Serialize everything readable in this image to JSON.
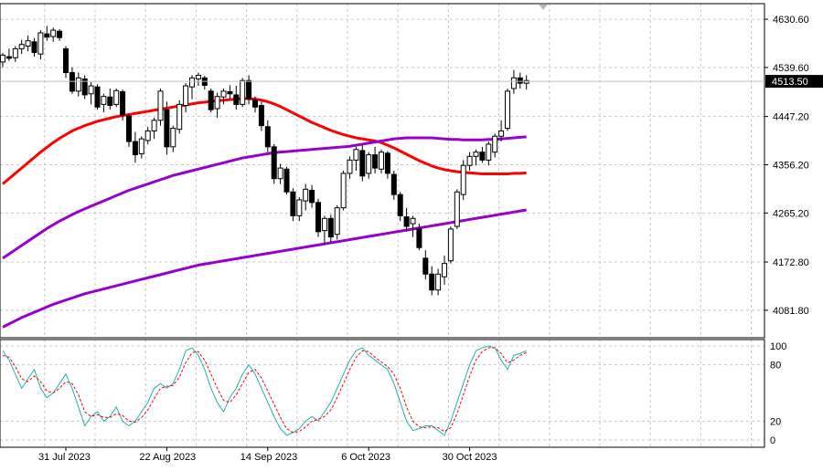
{
  "chart_data": [
    {
      "type": "candlestick",
      "pane": "price",
      "ylim": [
        4030,
        4660
      ],
      "y_ticks": [
        "4630.60",
        "4539.60",
        "4447.20",
        "4356.20",
        "4265.20",
        "4172.80",
        "4081.80"
      ],
      "current_price": "4513.50",
      "x_labels": [
        "31 Jul 2023",
        "22 Aug 2023",
        "14 Sep 2023",
        "6 Oct 2023",
        "30 Oct 2023"
      ],
      "x_label_bar_index": [
        10,
        26,
        42,
        58,
        74
      ],
      "grid": true,
      "bars": [
        [
          4550,
          4567,
          4540,
          4563
        ],
        [
          4560,
          4575,
          4552,
          4557
        ],
        [
          4558,
          4580,
          4550,
          4575
        ],
        [
          4575,
          4592,
          4565,
          4583
        ],
        [
          4580,
          4600,
          4570,
          4590
        ],
        [
          4588,
          4595,
          4560,
          4568
        ],
        [
          4565,
          4610,
          4555,
          4605
        ],
        [
          4603,
          4618,
          4590,
          4597
        ],
        [
          4598,
          4615,
          4588,
          4610
        ],
        [
          4608,
          4612,
          4590,
          4596
        ],
        [
          4575,
          4580,
          4520,
          4530
        ],
        [
          4530,
          4540,
          4490,
          4495
        ],
        [
          4495,
          4530,
          4485,
          4520
        ],
        [
          4518,
          4525,
          4480,
          4488
        ],
        [
          4490,
          4512,
          4470,
          4505
        ],
        [
          4503,
          4508,
          4460,
          4465
        ],
        [
          4470,
          4490,
          4455,
          4485
        ],
        [
          4484,
          4500,
          4460,
          4468
        ],
        [
          4470,
          4500,
          4465,
          4496
        ],
        [
          4494,
          4498,
          4440,
          4450
        ],
        [
          4448,
          4452,
          4390,
          4400
        ],
        [
          4400,
          4418,
          4360,
          4375
        ],
        [
          4377,
          4410,
          4368,
          4405
        ],
        [
          4402,
          4428,
          4395,
          4420
        ],
        [
          4420,
          4445,
          4405,
          4440
        ],
        [
          4440,
          4500,
          4430,
          4495
        ],
        [
          4460,
          4475,
          4375,
          4390
        ],
        [
          4390,
          4430,
          4380,
          4425
        ],
        [
          4423,
          4478,
          4415,
          4470
        ],
        [
          4468,
          4510,
          4455,
          4505
        ],
        [
          4503,
          4525,
          4480,
          4520
        ],
        [
          4518,
          4530,
          4505,
          4525
        ],
        [
          4520,
          4524,
          4498,
          4506
        ],
        [
          4495,
          4500,
          4455,
          4460
        ],
        [
          4462,
          4492,
          4445,
          4485
        ],
        [
          4484,
          4500,
          4470,
          4495
        ],
        [
          4494,
          4506,
          4480,
          4490
        ],
        [
          4488,
          4505,
          4460,
          4470
        ],
        [
          4470,
          4520,
          4465,
          4515
        ],
        [
          4515,
          4525,
          4470,
          4480
        ],
        [
          4478,
          4485,
          4455,
          4465
        ],
        [
          4468,
          4475,
          4420,
          4430
        ],
        [
          4428,
          4440,
          4380,
          4390
        ],
        [
          4390,
          4395,
          4320,
          4330
        ],
        [
          4330,
          4358,
          4320,
          4350
        ],
        [
          4348,
          4352,
          4300,
          4305
        ],
        [
          4305,
          4312,
          4250,
          4260
        ],
        [
          4260,
          4295,
          4250,
          4290
        ],
        [
          4288,
          4320,
          4270,
          4310
        ],
        [
          4308,
          4318,
          4275,
          4285
        ],
        [
          4285,
          4292,
          4220,
          4230
        ],
        [
          4232,
          4260,
          4205,
          4255
        ],
        [
          4255,
          4262,
          4210,
          4220
        ],
        [
          4225,
          4280,
          4215,
          4275
        ],
        [
          4275,
          4345,
          4270,
          4340
        ],
        [
          4340,
          4372,
          4330,
          4365
        ],
        [
          4365,
          4390,
          4345,
          4385
        ],
        [
          4383,
          4395,
          4325,
          4335
        ],
        [
          4340,
          4380,
          4330,
          4375
        ],
        [
          4375,
          4390,
          4340,
          4350
        ],
        [
          4348,
          4385,
          4340,
          4380
        ],
        [
          4378,
          4382,
          4330,
          4340
        ],
        [
          4338,
          4345,
          4290,
          4300
        ],
        [
          4300,
          4305,
          4250,
          4260
        ],
        [
          4258,
          4275,
          4230,
          4240
        ],
        [
          4245,
          4260,
          4220,
          4255
        ],
        [
          4235,
          4245,
          4195,
          4200
        ],
        [
          4180,
          4195,
          4140,
          4150
        ],
        [
          4150,
          4165,
          4110,
          4120
        ],
        [
          4120,
          4160,
          4110,
          4150
        ],
        [
          4145,
          4185,
          4130,
          4170
        ],
        [
          4175,
          4240,
          4170,
          4235
        ],
        [
          4240,
          4310,
          4235,
          4305
        ],
        [
          4300,
          4365,
          4290,
          4355
        ],
        [
          4355,
          4380,
          4345,
          4372
        ],
        [
          4372,
          4385,
          4355,
          4380
        ],
        [
          4380,
          4390,
          4360,
          4365
        ],
        [
          4365,
          4400,
          4355,
          4395
        ],
        [
          4380,
          4415,
          4370,
          4410
        ],
        [
          4410,
          4440,
          4400,
          4420
        ],
        [
          4425,
          4500,
          4420,
          4495
        ],
        [
          4500,
          4535,
          4490,
          4520
        ],
        [
          4520,
          4530,
          4500,
          4510
        ],
        [
          4510,
          4525,
          4498,
          4515
        ]
      ],
      "series": [
        {
          "name": "",
          "color": "#ff0000",
          "values": [
            4320,
            4330,
            4340,
            4350,
            4360,
            4370,
            4380,
            4389,
            4398,
            4406,
            4413,
            4420,
            4425,
            4430,
            4434,
            4438,
            4441,
            4444,
            4447,
            4449,
            4451,
            4453,
            4455,
            4457,
            4459,
            4461,
            4463,
            4465,
            4467,
            4469,
            4471,
            4473,
            4474,
            4476,
            4477,
            4478,
            4479,
            4480,
            4481,
            4481,
            4480,
            4478,
            4475,
            4471,
            4466,
            4460,
            4454,
            4448,
            4442,
            4436,
            4431,
            4426,
            4421,
            4417,
            4413,
            4410,
            4407,
            4405,
            4403,
            4401,
            4398,
            4393,
            4388,
            4382,
            4376,
            4370,
            4364,
            4359,
            4354,
            4350,
            4347,
            4345,
            4343,
            4342,
            4341,
            4340,
            4339,
            4339,
            4339,
            4339,
            4339,
            4340,
            4340,
            4341
          ]
        },
        {
          "name": "",
          "color": "#9900cc",
          "values": [
            4180,
            4188,
            4196,
            4204,
            4212,
            4220,
            4228,
            4236,
            4243,
            4250,
            4256,
            4262,
            4268,
            4273,
            4278,
            4283,
            4288,
            4293,
            4298,
            4303,
            4308,
            4312,
            4316,
            4320,
            4324,
            4328,
            4332,
            4336,
            4339,
            4342,
            4345,
            4348,
            4351,
            4354,
            4357,
            4360,
            4363,
            4366,
            4369,
            4371,
            4373,
            4375,
            4377,
            4379,
            4380,
            4381,
            4382,
            4383,
            4384,
            4385,
            4386,
            4387,
            4388,
            4389,
            4390,
            4391,
            4393,
            4395,
            4397,
            4399,
            4401,
            4403,
            4405,
            4406,
            4407,
            4407,
            4407,
            4407,
            4407,
            4406,
            4405,
            4404,
            4404,
            4403,
            4403,
            4403,
            4403,
            4404,
            4404,
            4405,
            4406,
            4407,
            4408,
            4409
          ]
        },
        {
          "name": "",
          "color": "#9900cc",
          "values": [
            4050,
            4056,
            4062,
            4068,
            4073,
            4078,
            4083,
            4088,
            4093,
            4097,
            4101,
            4105,
            4109,
            4113,
            4116,
            4119,
            4122,
            4125,
            4128,
            4131,
            4134,
            4137,
            4140,
            4143,
            4146,
            4149,
            4152,
            4155,
            4158,
            4161,
            4164,
            4167,
            4169,
            4171,
            4173,
            4175,
            4177,
            4179,
            4181,
            4183,
            4185,
            4187,
            4189,
            4191,
            4193,
            4195,
            4197,
            4199,
            4201,
            4203,
            4205,
            4207,
            4209,
            4211,
            4213,
            4215,
            4217,
            4219,
            4221,
            4223,
            4225,
            4227,
            4229,
            4231,
            4233,
            4235,
            4237,
            4239,
            4241,
            4243,
            4245,
            4247,
            4249,
            4251,
            4253,
            4255,
            4257,
            4259,
            4261,
            4263,
            4265,
            4267,
            4269,
            4271
          ]
        }
      ]
    },
    {
      "type": "line",
      "pane": "oscillator",
      "ylim": [
        0,
        100
      ],
      "y_ticks": [
        "100",
        "80",
        "20",
        "0"
      ],
      "series": [
        {
          "name": "",
          "color": "#20b2aa",
          "values": [
            95,
            85,
            70,
            55,
            65,
            75,
            55,
            45,
            50,
            60,
            70,
            55,
            35,
            15,
            25,
            30,
            20,
            25,
            35,
            20,
            15,
            20,
            30,
            40,
            55,
            60,
            55,
            60,
            75,
            95,
            98,
            90,
            75,
            55,
            40,
            30,
            45,
            55,
            70,
            80,
            70,
            55,
            40,
            25,
            12,
            5,
            8,
            12,
            20,
            25,
            20,
            30,
            40,
            55,
            70,
            85,
            95,
            98,
            90,
            85,
            80,
            75,
            60,
            40,
            20,
            10,
            12,
            15,
            15,
            10,
            5,
            20,
            40,
            60,
            80,
            95,
            98,
            100,
            98,
            85,
            75,
            90,
            92,
            95
          ]
        },
        {
          "name": "",
          "color": "#ff0000",
          "values": [
            90,
            88,
            78,
            65,
            62,
            68,
            62,
            52,
            50,
            55,
            62,
            60,
            48,
            30,
            25,
            27,
            24,
            24,
            28,
            26,
            20,
            19,
            24,
            32,
            44,
            55,
            57,
            58,
            67,
            82,
            93,
            94,
            85,
            70,
            55,
            42,
            40,
            48,
            60,
            72,
            75,
            66,
            52,
            38,
            24,
            12,
            8,
            9,
            14,
            20,
            22,
            25,
            32,
            45,
            60,
            75,
            88,
            95,
            94,
            88,
            83,
            78,
            70,
            55,
            35,
            20,
            14,
            13,
            14,
            13,
            9,
            13,
            28,
            48,
            68,
            85,
            94,
            98,
            98,
            92,
            82,
            85,
            90,
            93
          ]
        }
      ]
    }
  ]
}
